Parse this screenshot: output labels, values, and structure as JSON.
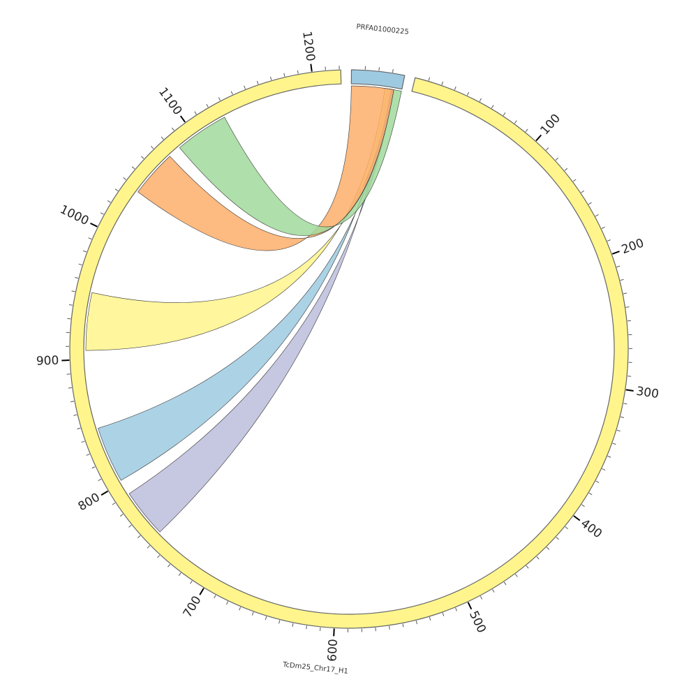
{
  "chart_data": {
    "type": "chord",
    "title": "",
    "chromosomes": [
      {
        "id": "PRFA01000225",
        "label": "PRFA01000225",
        "length": 39,
        "color": "#9ecae1"
      },
      {
        "id": "TcDm25_Chr17_H1",
        "label": "TcDm25_Chr17_H1",
        "length": 1221,
        "color": "#fff58c"
      }
    ],
    "ticks": {
      "minor_step": 10,
      "major_step": 100,
      "labels": [
        "100",
        "200",
        "300",
        "400",
        "500",
        "600",
        "700",
        "800",
        "900",
        "1000",
        "1100",
        "1200"
      ],
      "label_values": [
        100,
        200,
        300,
        400,
        500,
        600,
        700,
        800,
        900,
        1000,
        1100,
        1200
      ],
      "labeled_chromosome": "TcDm25_Chr17_H1"
    },
    "links": [
      {
        "name": "purple",
        "color": "#bcbddc",
        "source": {
          "chr": "PRFA01000225",
          "start": 29,
          "end": 33
        },
        "target": {
          "chr": "TcDm25_Chr17_H1",
          "start": 752,
          "end": 790
        }
      },
      {
        "name": "blue",
        "color": "#9ecae1",
        "source": {
          "chr": "PRFA01000225",
          "start": 28,
          "end": 32
        },
        "target": {
          "chr": "TcDm25_Chr17_H1",
          "start": 802,
          "end": 846
        }
      },
      {
        "name": "yellow",
        "color": "#fff58c",
        "source": {
          "chr": "PRFA01000225",
          "start": 26,
          "end": 31
        },
        "target": {
          "chr": "TcDm25_Chr17_H1",
          "start": 907,
          "end": 952
        }
      },
      {
        "name": "orange",
        "color": "#fdae6b",
        "source": {
          "chr": "PRFA01000225",
          "start": 0,
          "end": 33
        },
        "target": {
          "chr": "TcDm25_Chr17_H1",
          "start": 1038,
          "end": 1075
        }
      },
      {
        "name": "green",
        "color": "#a1d99b",
        "source": {
          "chr": "PRFA01000225",
          "start": 33,
          "end": 39
        },
        "target": {
          "chr": "TcDm25_Chr17_H1",
          "start": 1085,
          "end": 1127
        }
      }
    ]
  }
}
